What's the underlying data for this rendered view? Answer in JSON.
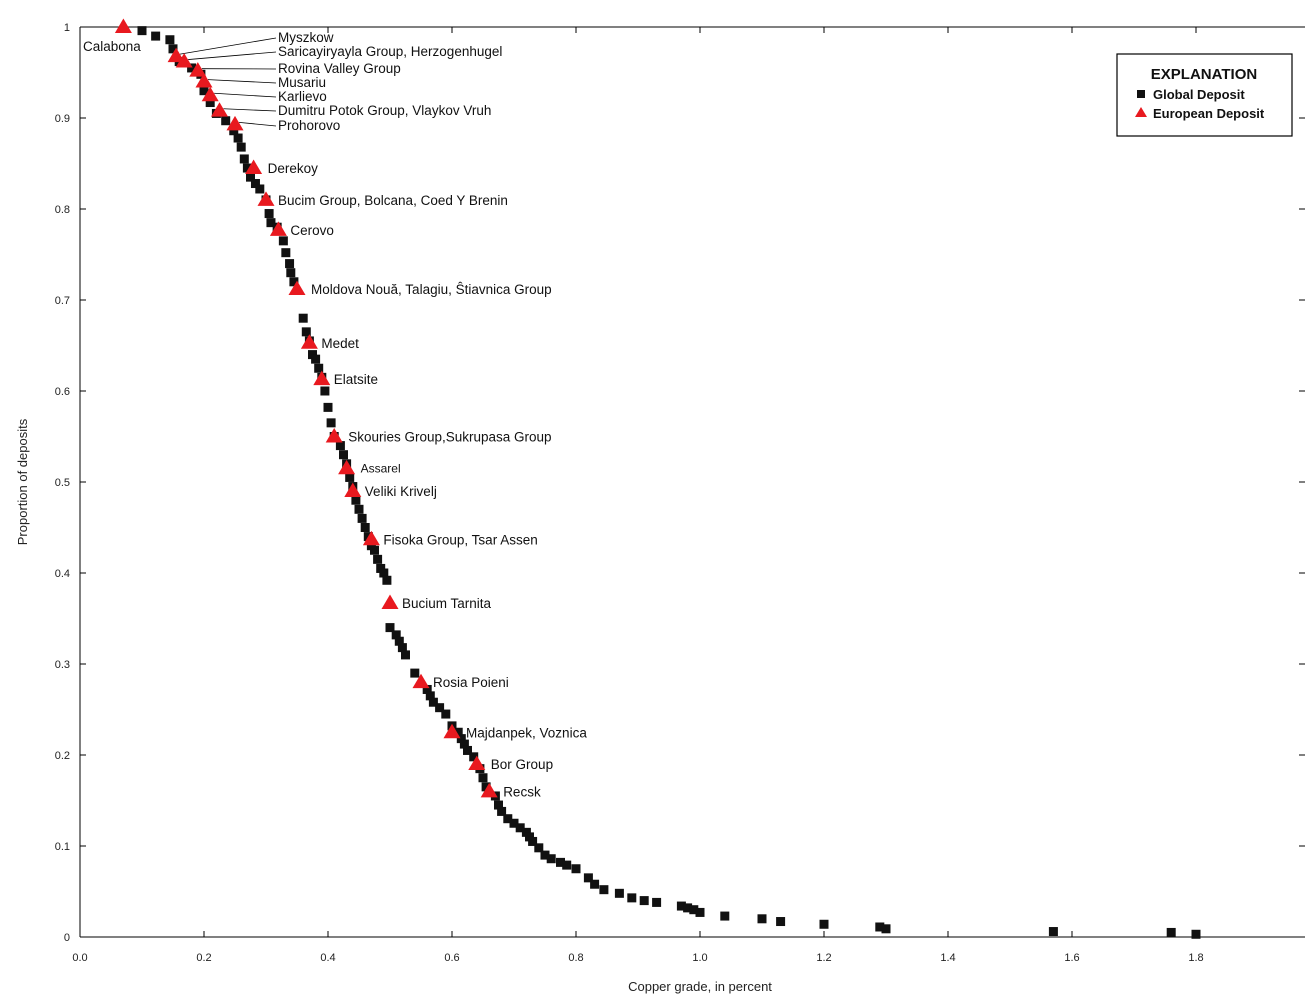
{
  "chart_data": {
    "type": "scatter",
    "title": "",
    "xlabel": "Copper grade, in percent",
    "ylabel": "Proportion of deposits",
    "xlim": [
      0,
      1.95
    ],
    "ylim": [
      0,
      1
    ],
    "x_ticks": [
      "0.0",
      "0.2",
      "0.4",
      "0.6",
      "0.8",
      "1.0",
      "1.2",
      "1.4",
      "1.6",
      "1.8"
    ],
    "y_ticks": [
      "0",
      "0.1",
      "0.2",
      "0.3",
      "0.4",
      "0.5",
      "0.6",
      "0.7",
      "0.8",
      "0.9",
      "1"
    ],
    "grid": false,
    "legend": {
      "title": "EXPLANATION",
      "placement": "top-right",
      "entries": [
        {
          "label": "Global Deposit",
          "marker": "square",
          "color": "#111111"
        },
        {
          "label": "European Deposit",
          "marker": "triangle",
          "color": "#e8191f"
        }
      ]
    },
    "series": [
      {
        "name": "Global Deposit",
        "marker": "square",
        "color": "#111111",
        "points": [
          [
            0.1,
            0.996
          ],
          [
            0.122,
            0.99
          ],
          [
            0.145,
            0.986
          ],
          [
            0.15,
            0.976
          ],
          [
            0.16,
            0.962
          ],
          [
            0.18,
            0.955
          ],
          [
            0.195,
            0.948
          ],
          [
            0.2,
            0.93
          ],
          [
            0.21,
            0.917
          ],
          [
            0.22,
            0.905
          ],
          [
            0.235,
            0.897
          ],
          [
            0.248,
            0.886
          ],
          [
            0.255,
            0.878
          ],
          [
            0.26,
            0.868
          ],
          [
            0.265,
            0.855
          ],
          [
            0.27,
            0.845
          ],
          [
            0.275,
            0.835
          ],
          [
            0.283,
            0.828
          ],
          [
            0.29,
            0.822
          ],
          [
            0.3,
            0.81
          ],
          [
            0.305,
            0.795
          ],
          [
            0.308,
            0.785
          ],
          [
            0.318,
            0.78
          ],
          [
            0.328,
            0.765
          ],
          [
            0.332,
            0.752
          ],
          [
            0.338,
            0.74
          ],
          [
            0.34,
            0.73
          ],
          [
            0.345,
            0.72
          ],
          [
            0.36,
            0.68
          ],
          [
            0.365,
            0.665
          ],
          [
            0.37,
            0.655
          ],
          [
            0.375,
            0.64
          ],
          [
            0.38,
            0.635
          ],
          [
            0.385,
            0.625
          ],
          [
            0.39,
            0.615
          ],
          [
            0.395,
            0.6
          ],
          [
            0.4,
            0.582
          ],
          [
            0.405,
            0.565
          ],
          [
            0.41,
            0.55
          ],
          [
            0.42,
            0.54
          ],
          [
            0.425,
            0.53
          ],
          [
            0.43,
            0.52
          ],
          [
            0.435,
            0.505
          ],
          [
            0.44,
            0.495
          ],
          [
            0.445,
            0.48
          ],
          [
            0.45,
            0.47
          ],
          [
            0.455,
            0.46
          ],
          [
            0.46,
            0.45
          ],
          [
            0.465,
            0.44
          ],
          [
            0.47,
            0.43
          ],
          [
            0.475,
            0.425
          ],
          [
            0.48,
            0.415
          ],
          [
            0.485,
            0.405
          ],
          [
            0.49,
            0.4
          ],
          [
            0.495,
            0.392
          ],
          [
            0.5,
            0.34
          ],
          [
            0.51,
            0.332
          ],
          [
            0.515,
            0.325
          ],
          [
            0.52,
            0.318
          ],
          [
            0.525,
            0.31
          ],
          [
            0.54,
            0.29
          ],
          [
            0.56,
            0.272
          ],
          [
            0.565,
            0.265
          ],
          [
            0.57,
            0.258
          ],
          [
            0.58,
            0.252
          ],
          [
            0.59,
            0.245
          ],
          [
            0.6,
            0.232
          ],
          [
            0.61,
            0.225
          ],
          [
            0.615,
            0.218
          ],
          [
            0.62,
            0.212
          ],
          [
            0.625,
            0.205
          ],
          [
            0.635,
            0.198
          ],
          [
            0.645,
            0.185
          ],
          [
            0.65,
            0.175
          ],
          [
            0.655,
            0.165
          ],
          [
            0.67,
            0.155
          ],
          [
            0.675,
            0.145
          ],
          [
            0.68,
            0.138
          ],
          [
            0.69,
            0.13
          ],
          [
            0.7,
            0.125
          ],
          [
            0.71,
            0.12
          ],
          [
            0.72,
            0.115
          ],
          [
            0.725,
            0.11
          ],
          [
            0.73,
            0.105
          ],
          [
            0.74,
            0.098
          ],
          [
            0.75,
            0.09
          ],
          [
            0.76,
            0.086
          ],
          [
            0.775,
            0.082
          ],
          [
            0.785,
            0.079
          ],
          [
            0.8,
            0.075
          ],
          [
            0.82,
            0.065
          ],
          [
            0.83,
            0.058
          ],
          [
            0.845,
            0.052
          ],
          [
            0.87,
            0.048
          ],
          [
            0.89,
            0.043
          ],
          [
            0.91,
            0.04
          ],
          [
            0.93,
            0.038
          ],
          [
            0.97,
            0.034
          ],
          [
            0.98,
            0.032
          ],
          [
            0.99,
            0.03
          ],
          [
            1.0,
            0.027
          ],
          [
            1.04,
            0.023
          ],
          [
            1.1,
            0.02
          ],
          [
            1.13,
            0.017
          ],
          [
            1.2,
            0.014
          ],
          [
            1.29,
            0.011
          ],
          [
            1.3,
            0.009
          ],
          [
            1.57,
            0.006
          ],
          [
            1.76,
            0.005
          ],
          [
            1.8,
            0.003
          ]
        ]
      },
      {
        "name": "European Deposit",
        "marker": "triangle",
        "color": "#e8191f",
        "points": [
          [
            0.07,
            1.0
          ],
          [
            0.155,
            0.968
          ],
          [
            0.168,
            0.962
          ],
          [
            0.19,
            0.952
          ],
          [
            0.2,
            0.94
          ],
          [
            0.21,
            0.925
          ],
          [
            0.225,
            0.908
          ],
          [
            0.25,
            0.893
          ],
          [
            0.28,
            0.845
          ],
          [
            0.3,
            0.81
          ],
          [
            0.32,
            0.777
          ],
          [
            0.35,
            0.712
          ],
          [
            0.37,
            0.653
          ],
          [
            0.39,
            0.613
          ],
          [
            0.41,
            0.55
          ],
          [
            0.43,
            0.515
          ],
          [
            0.44,
            0.49
          ],
          [
            0.47,
            0.437
          ],
          [
            0.5,
            0.367
          ],
          [
            0.55,
            0.28
          ],
          [
            0.6,
            0.225
          ],
          [
            0.64,
            0.19
          ],
          [
            0.66,
            0.16
          ]
        ]
      }
    ],
    "annotations": [
      {
        "text": "Calabona",
        "x": 0.07,
        "y": 1.0
      },
      {
        "text": "Myszkow",
        "x": 0.155,
        "y": 0.968
      },
      {
        "text": "Saricayiryayla Group, Herzogenhugel",
        "x": 0.168,
        "y": 0.962
      },
      {
        "text": "Rovina Valley Group",
        "x": 0.19,
        "y": 0.952
      },
      {
        "text": "Musariu",
        "x": 0.2,
        "y": 0.94
      },
      {
        "text": "Karlievo",
        "x": 0.21,
        "y": 0.925
      },
      {
        "text": "Dumitru Potok Group, Vlaykov Vruh",
        "x": 0.225,
        "y": 0.908
      },
      {
        "text": "Prohorovo",
        "x": 0.25,
        "y": 0.893
      },
      {
        "text": "Derekoy",
        "x": 0.28,
        "y": 0.845
      },
      {
        "text": "Bucim Group, Bolcana, Coed Y Brenin",
        "x": 0.3,
        "y": 0.81
      },
      {
        "text": "Cerovo",
        "x": 0.32,
        "y": 0.777
      },
      {
        "text": "Moldova Nouă, Talagiu, Ŝtiavnica Group",
        "x": 0.35,
        "y": 0.712
      },
      {
        "text": "Medet",
        "x": 0.37,
        "y": 0.653
      },
      {
        "text": "Elatsite",
        "x": 0.39,
        "y": 0.613
      },
      {
        "text": "Skouries Group,Sukrupasa Group",
        "x": 0.41,
        "y": 0.55
      },
      {
        "text": "Assarel",
        "x": 0.43,
        "y": 0.515
      },
      {
        "text": "Veliki Krivelj",
        "x": 0.44,
        "y": 0.49
      },
      {
        "text": "Fisoka Group, Tsar Assen",
        "x": 0.47,
        "y": 0.437
      },
      {
        "text": "Bucium Tarnita",
        "x": 0.5,
        "y": 0.367
      },
      {
        "text": "Rosia Poieni",
        "x": 0.55,
        "y": 0.28
      },
      {
        "text": "Majdanpek, Voznica",
        "x": 0.6,
        "y": 0.225
      },
      {
        "text": "Bor Group",
        "x": 0.64,
        "y": 0.19
      },
      {
        "text": "Recsk",
        "x": 0.66,
        "y": 0.16
      }
    ]
  }
}
